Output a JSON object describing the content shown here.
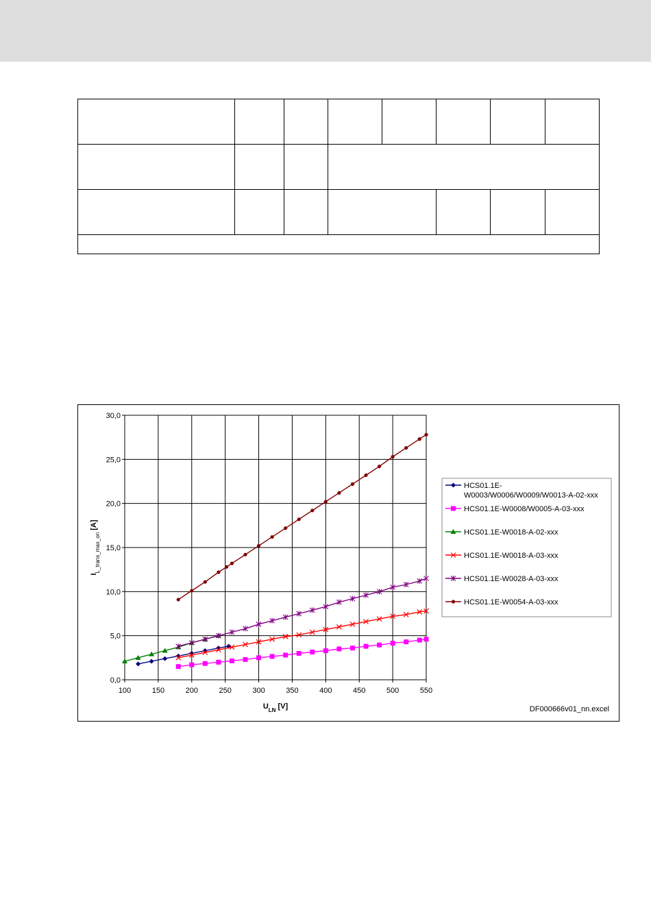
{
  "chart_data": {
    "type": "line",
    "title": "",
    "xlabel": "U",
    "xlabel_sub": "LN",
    "xlabel_unit": " [V]",
    "ylabel": "I",
    "ylabel_sub": "L_trans_max_on",
    "ylabel_unit": " [A]",
    "xlim": [
      100,
      550
    ],
    "ylim": [
      0,
      30
    ],
    "x_ticks": [
      "100",
      "150",
      "200",
      "250",
      "300",
      "350",
      "400",
      "450",
      "500",
      "550"
    ],
    "y_ticks": [
      "0,0",
      "5,0",
      "10,0",
      "15,0",
      "20,0",
      "25,0",
      "30,0"
    ],
    "grid": true,
    "legend_position": "right",
    "credit": "DF000666v01_nn.excel",
    "series": [
      {
        "name": "HCS01.1E-W0003/W0006/W0009/W0013-A-02-xxx",
        "legend_lines": [
          "HCS01.1E-",
          "W0003/W0006/W0009/W0013-A-02-xxx"
        ],
        "color": "#000080",
        "marker": "diamond",
        "x": [
          120,
          140,
          160,
          180,
          200,
          220,
          240,
          255
        ],
        "y": [
          1.8,
          2.1,
          2.4,
          2.7,
          3.0,
          3.3,
          3.6,
          3.8
        ]
      },
      {
        "name": "HCS01.1E-W0008/W0005-A-03-xxx",
        "legend_lines": [
          "HCS01.1E-W0008/W0005-A-03-xxx"
        ],
        "color": "#ff00ff",
        "marker": "square",
        "x": [
          180,
          200,
          220,
          240,
          260,
          280,
          300,
          320,
          340,
          360,
          380,
          400,
          420,
          440,
          460,
          480,
          500,
          520,
          540,
          550
        ],
        "y": [
          1.5,
          1.7,
          1.85,
          2.0,
          2.15,
          2.3,
          2.5,
          2.65,
          2.8,
          3.0,
          3.15,
          3.3,
          3.5,
          3.6,
          3.8,
          3.95,
          4.15,
          4.3,
          4.5,
          4.6
        ]
      },
      {
        "name": "HCS01.1E-W0018-A-02-xxx",
        "legend_lines": [
          "HCS01.1E-W0018-A-02-xxx"
        ],
        "color": "#008000",
        "marker": "triangle",
        "x": [
          100,
          120,
          140,
          160,
          180,
          200,
          220,
          240
        ],
        "y": [
          2.1,
          2.5,
          2.9,
          3.3,
          3.7,
          4.2,
          4.6,
          5.0
        ]
      },
      {
        "name": "HCS01.1E-W0018-A-03-xxx",
        "legend_lines": [
          "HCS01.1E-W0018-A-03-xxx"
        ],
        "color": "#ff0000",
        "marker": "x",
        "x": [
          180,
          200,
          220,
          240,
          260,
          280,
          300,
          320,
          340,
          360,
          380,
          400,
          420,
          440,
          460,
          480,
          500,
          520,
          540,
          550
        ],
        "y": [
          2.5,
          2.8,
          3.1,
          3.4,
          3.7,
          4.0,
          4.3,
          4.6,
          4.9,
          5.1,
          5.4,
          5.7,
          6.0,
          6.3,
          6.6,
          6.9,
          7.2,
          7.4,
          7.7,
          7.8
        ]
      },
      {
        "name": "HCS01.1E-W0028-A-03-xxx",
        "legend_lines": [
          "HCS01.1E-W0028-A-03-xxx"
        ],
        "color": "#800080",
        "marker": "star",
        "x": [
          180,
          200,
          220,
          240,
          260,
          280,
          300,
          320,
          340,
          360,
          380,
          400,
          420,
          440,
          460,
          480,
          500,
          520,
          540,
          550
        ],
        "y": [
          3.8,
          4.2,
          4.6,
          5.0,
          5.4,
          5.8,
          6.3,
          6.7,
          7.1,
          7.5,
          7.9,
          8.3,
          8.8,
          9.2,
          9.6,
          10.0,
          10.5,
          10.8,
          11.2,
          11.5
        ]
      },
      {
        "name": "HCS01.1E-W0054-A-03-xxx",
        "legend_lines": [
          "HCS01.1E-W0054-A-03-xxx"
        ],
        "color": "#800000",
        "marker": "dot",
        "x": [
          180,
          200,
          220,
          240,
          252,
          260,
          280,
          300,
          320,
          340,
          360,
          380,
          400,
          420,
          440,
          460,
          480,
          500,
          520,
          540,
          550
        ],
        "y": [
          9.1,
          10.1,
          11.1,
          12.2,
          12.8,
          13.2,
          14.2,
          15.2,
          16.2,
          17.2,
          18.2,
          19.2,
          20.2,
          21.2,
          22.2,
          23.2,
          24.2,
          25.3,
          26.3,
          27.3,
          27.8
        ]
      }
    ]
  }
}
